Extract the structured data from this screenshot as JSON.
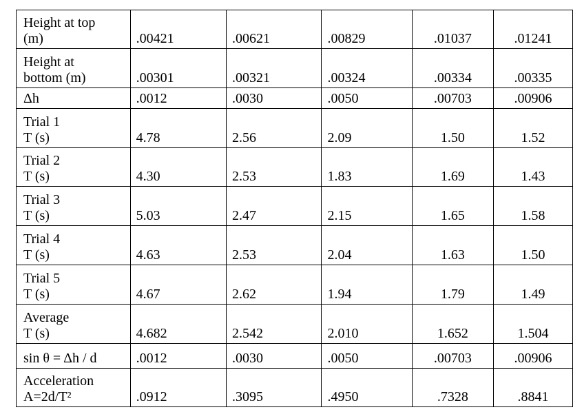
{
  "table": {
    "rows": [
      {
        "label": [
          "Height at top",
          "(m)"
        ],
        "cells": [
          ".00421",
          ".00621",
          ".00829",
          ".01037",
          ".01241"
        ]
      },
      {
        "label": [
          "Height at",
          "bottom (m)"
        ],
        "cells": [
          ".00301",
          ".00321",
          ".00324",
          ".00334",
          ".00335"
        ]
      },
      {
        "label": [
          "Δh"
        ],
        "cells": [
          ".0012",
          ".0030",
          ".0050",
          ".00703",
          ".00906"
        ]
      },
      {
        "label": [
          "Trial 1",
          "T (s)"
        ],
        "cells": [
          "4.78",
          "2.56",
          "2.09",
          "1.50",
          "1.52"
        ]
      },
      {
        "label": [
          "Trial 2",
          "T (s)"
        ],
        "cells": [
          "4.30",
          "2.53",
          "1.83",
          "1.69",
          "1.43"
        ]
      },
      {
        "label": [
          "Trial 3",
          "T (s)"
        ],
        "cells": [
          "5.03",
          "2.47",
          "2.15",
          "1.65",
          "1.58"
        ]
      },
      {
        "label": [
          "Trial 4",
          "T (s)"
        ],
        "cells": [
          "4.63",
          "2.53",
          "2.04",
          "1.63",
          "1.50"
        ]
      },
      {
        "label": [
          "Trial 5",
          "T (s)"
        ],
        "cells": [
          "4.67",
          "2.62",
          "1.94",
          "1.79",
          "1.49"
        ]
      },
      {
        "label": [
          "Average",
          "T (s)"
        ],
        "cells": [
          "4.682",
          "2.542",
          "2.010",
          "1.652",
          "1.504"
        ]
      },
      {
        "label": [
          "sin θ = Δh / d"
        ],
        "cells": [
          ".0012",
          ".0030",
          ".0050",
          ".00703",
          ".00906"
        ]
      },
      {
        "label": [
          "Acceleration",
          "A=2d/T²"
        ],
        "cells": [
          ".0912",
          ".3095",
          ".4950",
          ".7328",
          ".8841"
        ]
      }
    ]
  }
}
